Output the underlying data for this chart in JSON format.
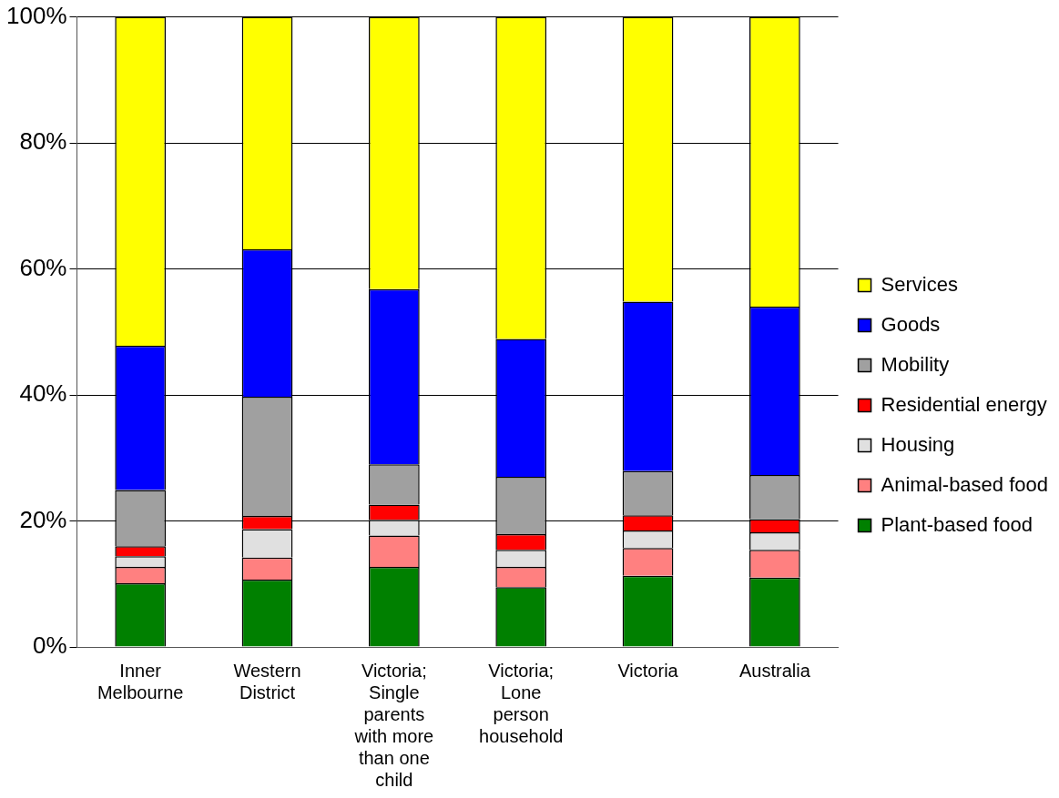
{
  "chart_data": {
    "type": "bar",
    "stacked": true,
    "categories": [
      "Inner Melbourne",
      "Western District",
      "Victoria; Single parents with more than one child",
      "Victoria; Lone person household",
      "Victoria",
      "Australia"
    ],
    "series": [
      {
        "name": "Plant-based food",
        "color": "#008000",
        "values": [
          10.1,
          10.7,
          12.7,
          9.5,
          11.3,
          11.0
        ]
      },
      {
        "name": "Animal-based food",
        "color": "#ff8080",
        "values": [
          2.6,
          3.5,
          5.0,
          3.2,
          4.4,
          4.4
        ]
      },
      {
        "name": "Housing",
        "color": "#e0e0e0",
        "values": [
          1.7,
          4.5,
          2.5,
          2.7,
          2.8,
          2.8
        ]
      },
      {
        "name": "Residential energy",
        "color": "#ff0000",
        "values": [
          1.6,
          2.1,
          2.4,
          2.5,
          2.4,
          2.1
        ]
      },
      {
        "name": "Mobility",
        "color": "#a0a0a0",
        "values": [
          8.9,
          18.9,
          6.4,
          9.1,
          7.0,
          7.0
        ]
      },
      {
        "name": "Goods",
        "color": "#0000ff",
        "values": [
          22.9,
          23.4,
          27.8,
          21.9,
          26.9,
          26.7
        ]
      },
      {
        "name": "Services",
        "color": "#ffff00",
        "values": [
          52.2,
          36.9,
          43.2,
          51.1,
          45.2,
          46.0
        ]
      }
    ],
    "ylim": [
      0,
      100
    ],
    "yticks": [
      {
        "value": 0,
        "label": "0%"
      },
      {
        "value": 20,
        "label": "20%"
      },
      {
        "value": 40,
        "label": "40%"
      },
      {
        "value": 60,
        "label": "60%"
      },
      {
        "value": 80,
        "label": "80%"
      },
      {
        "value": 100,
        "label": "100%"
      }
    ],
    "grid": "y",
    "legend": "right"
  }
}
